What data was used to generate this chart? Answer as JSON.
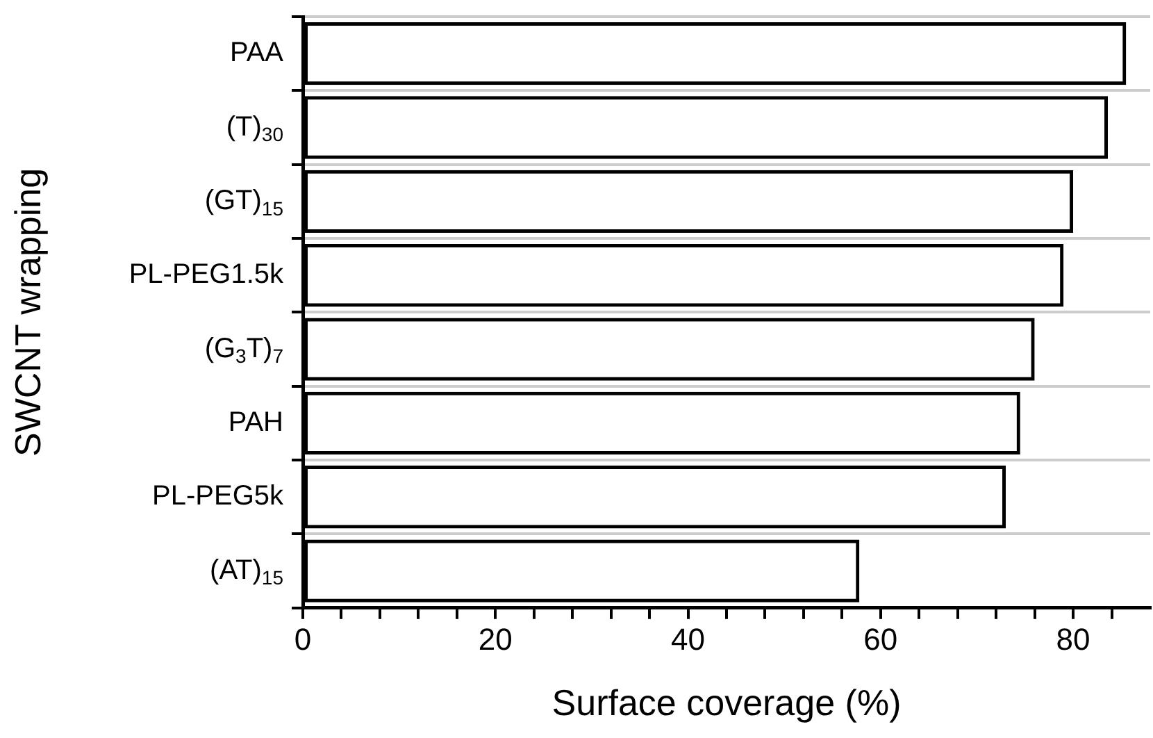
{
  "chart_data": {
    "type": "bar",
    "orientation": "horizontal",
    "xlabel": "Surface coverage (%)",
    "ylabel": "SWCNT wrapping",
    "categories": [
      "PAA",
      "(T)$_{30}$",
      "(GT)$_{15}$",
      "PL-PEG1.5k",
      "(G$_{3}$T)$_{7}$",
      "PAH",
      "PL-PEG5k",
      "(AT)$_{15}$"
    ],
    "values": [
      85.5,
      83.6,
      80,
      79,
      76,
      74.5,
      73,
      57.8
    ],
    "color": "#000000",
    "xlim": [
      0,
      88
    ],
    "xticks": [
      0,
      {
        "value": 4,
        "label": null
      },
      {
        "value": 8,
        "label": null
      },
      {
        "value": 12,
        "label": null
      },
      {
        "value": 16,
        "label": null
      },
      20,
      {
        "value": 24,
        "label": null
      },
      {
        "value": 28,
        "label": null
      },
      {
        "value": 32,
        "label": null
      },
      {
        "value": 36,
        "label": null
      },
      40,
      {
        "value": 44,
        "label": null
      },
      {
        "value": 48,
        "label": null
      },
      {
        "value": 52,
        "label": null
      },
      {
        "value": 56,
        "label": null
      },
      60,
      {
        "value": 64,
        "label": null
      },
      {
        "value": 68,
        "label": null
      },
      {
        "value": 72,
        "label": null
      },
      {
        "value": 76,
        "label": null
      },
      80,
      {
        "value": 84,
        "label": null
      }
    ],
    "grid": "y"
  }
}
